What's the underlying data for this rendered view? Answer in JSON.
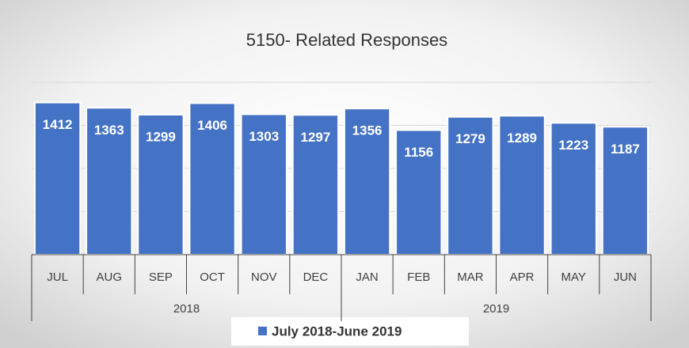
{
  "chart_data": {
    "type": "bar",
    "title": "5150- Related Responses",
    "categories": [
      "JUL",
      "AUG",
      "SEP",
      "OCT",
      "NOV",
      "DEC",
      "JAN",
      "FEB",
      "MAR",
      "APR",
      "MAY",
      "JUN"
    ],
    "groups": [
      {
        "name": "2018",
        "count": 6
      },
      {
        "name": "2019",
        "count": 6
      }
    ],
    "series": [
      {
        "name": "July 2018-June 2019",
        "color": "#4472c4",
        "values": [
          1412,
          1363,
          1299,
          1406,
          1303,
          1297,
          1356,
          1156,
          1279,
          1289,
          1223,
          1187
        ]
      }
    ],
    "ylim": [
      0,
      1600
    ],
    "yticks": [
      0,
      400,
      800,
      1200,
      1600
    ],
    "grid": true,
    "legend": "bottom"
  }
}
